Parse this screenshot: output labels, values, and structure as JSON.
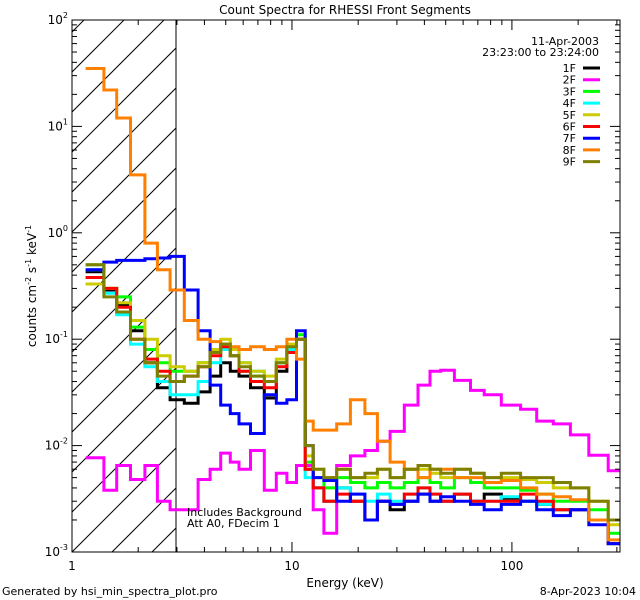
{
  "chart_data": {
    "type": "line",
    "title": "Count Spectra for RHESSI Front Segments",
    "xlabel": "Energy (keV)",
    "ylabel": {
      "base": "counts cm",
      "e1": "-2",
      "mid": " s",
      "e2": "-1",
      "mid2": " keV",
      "e3": "-1"
    },
    "xscale": "log",
    "yscale": "log",
    "xlim": [
      1,
      310
    ],
    "ylim": [
      0.001,
      100
    ],
    "x_ticks": [
      {
        "value": 1,
        "label": "1"
      },
      {
        "value": 10,
        "label": "10"
      },
      {
        "value": 100,
        "label": "100"
      }
    ],
    "y_ticks": [
      {
        "value": 0.001,
        "base": "10",
        "exp": "-3"
      },
      {
        "value": 0.01,
        "base": "10",
        "exp": "-2"
      },
      {
        "value": 0.1,
        "base": "10",
        "exp": "-1"
      },
      {
        "value": 1,
        "base": "10",
        "exp": "0"
      },
      {
        "value": 10,
        "base": "10",
        "exp": "1"
      },
      {
        "value": 100,
        "base": "10",
        "exp": "2"
      }
    ],
    "hatched_region_kev": [
      1,
      3
    ],
    "date": "11-Apr-2003",
    "time_range": "23:23:00 to 23:24:00",
    "annotations": [
      "Includes Background",
      "Att A0, FDecim 1"
    ],
    "legend_position": "top-right",
    "x": [
      1.2,
      1.3,
      1.5,
      1.7,
      2.0,
      2.3,
      2.6,
      3.0,
      3.5,
      4,
      4.5,
      5,
      5.5,
      6,
      7,
      8,
      9,
      10,
      11,
      12,
      13,
      15,
      17,
      20,
      23,
      26,
      30,
      35,
      40,
      45,
      50,
      60,
      70,
      80,
      100,
      120,
      140,
      170,
      200,
      250,
      300
    ],
    "series": [
      {
        "name": "1F",
        "color": "#000000",
        "values": [
          0.43,
          0.43,
          0.29,
          0.21,
          0.12,
          0.06,
          0.035,
          0.027,
          0.025,
          0.032,
          0.045,
          0.06,
          0.05,
          0.045,
          0.035,
          0.028,
          0.05,
          0.08,
          0.1,
          0.006,
          0.004,
          0.003,
          0.004,
          0.003,
          0.002,
          0.003,
          0.0025,
          0.003,
          0.0035,
          0.003,
          0.003,
          0.0035,
          0.003,
          0.0035,
          0.0032,
          0.003,
          0.0028,
          0.0025,
          0.0025,
          0.002,
          0.0012
        ]
      },
      {
        "name": "2F",
        "color": "#ff00ff",
        "values": [
          0.0077,
          0.0077,
          0.0038,
          0.0065,
          0.0048,
          0.0065,
          0.003,
          0.0025,
          0.0025,
          0.0048,
          0.006,
          0.0085,
          0.007,
          0.006,
          0.009,
          0.0038,
          0.0055,
          0.0045,
          0.0065,
          0.0065,
          0.0025,
          0.0015,
          0.0065,
          0.008,
          0.009,
          0.011,
          0.0136,
          0.024,
          0.037,
          0.05,
          0.051,
          0.041,
          0.033,
          0.03,
          0.024,
          0.022,
          0.017,
          0.016,
          0.0126,
          0.0081,
          0.0058
        ]
      },
      {
        "name": "3F",
        "color": "#00ff00",
        "values": [
          0.5,
          0.5,
          0.3,
          0.25,
          0.13,
          0.08,
          0.06,
          0.05,
          0.05,
          0.06,
          0.075,
          0.09,
          0.07,
          0.05,
          0.045,
          0.04,
          0.06,
          0.08,
          0.11,
          0.007,
          0.005,
          0.004,
          0.005,
          0.0045,
          0.004,
          0.0045,
          0.004,
          0.0045,
          0.005,
          0.0045,
          0.004,
          0.005,
          0.0045,
          0.004,
          0.004,
          0.0038,
          0.0035,
          0.003,
          0.003,
          0.0025,
          0.0015
        ]
      },
      {
        "name": "4F",
        "color": "#00ffff",
        "values": [
          0.45,
          0.45,
          0.27,
          0.17,
          0.09,
          0.055,
          0.04,
          0.03,
          0.03,
          0.04,
          0.06,
          0.08,
          0.07,
          0.06,
          0.05,
          0.04,
          0.06,
          0.08,
          0.1,
          0.005,
          0.004,
          0.003,
          0.004,
          0.0035,
          0.003,
          0.0035,
          0.003,
          0.0035,
          0.004,
          0.0035,
          0.003,
          0.0035,
          0.003,
          0.003,
          0.0033,
          0.003,
          0.0028,
          0.0025,
          0.0025,
          0.002,
          0.0012
        ]
      },
      {
        "name": "5F",
        "color": "#cccc00",
        "values": [
          0.33,
          0.33,
          0.3,
          0.22,
          0.15,
          0.1,
          0.07,
          0.055,
          0.05,
          0.06,
          0.08,
          0.1,
          0.08,
          0.06,
          0.05,
          0.045,
          0.065,
          0.09,
          0.1,
          0.008,
          0.006,
          0.005,
          0.006,
          0.005,
          0.005,
          0.006,
          0.005,
          0.006,
          0.006,
          0.0055,
          0.005,
          0.006,
          0.0055,
          0.005,
          0.005,
          0.0048,
          0.0045,
          0.004,
          0.004,
          0.003,
          0.0018
        ]
      },
      {
        "name": "6F",
        "color": "#ff0000",
        "values": [
          0.38,
          0.38,
          0.3,
          0.2,
          0.1,
          0.065,
          0.05,
          0.04,
          0.045,
          0.055,
          0.07,
          0.085,
          0.07,
          0.05,
          0.04,
          0.035,
          0.055,
          0.075,
          0.1,
          0.006,
          0.004,
          0.003,
          0.0035,
          0.003,
          0.002,
          0.003,
          0.0028,
          0.0035,
          0.004,
          0.0035,
          0.003,
          0.0035,
          0.003,
          0.003,
          0.003,
          0.0035,
          0.003,
          0.0025,
          0.0025,
          0.002,
          0.0012
        ]
      },
      {
        "name": "7F",
        "color": "#0000ff",
        "values": [
          0.45,
          0.45,
          0.53,
          0.55,
          0.55,
          0.57,
          0.58,
          0.6,
          0.29,
          0.12,
          0.037,
          0.024,
          0.02,
          0.016,
          0.013,
          0.03,
          0.025,
          0.027,
          0.12,
          0.01,
          0.005,
          0.0047,
          0.003,
          0.0035,
          0.002,
          0.003,
          0.0028,
          0.003,
          0.0035,
          0.003,
          0.0033,
          0.003,
          0.0028,
          0.0025,
          0.0028,
          0.003,
          0.0025,
          0.0022,
          0.0025,
          0.0018,
          0.0012
        ]
      },
      {
        "name": "8F",
        "color": "#ff8000",
        "values": [
          35,
          35,
          22,
          12,
          3.5,
          0.8,
          0.45,
          0.29,
          0.15,
          0.1,
          0.095,
          0.09,
          0.085,
          0.08,
          0.085,
          0.08,
          0.085,
          0.1,
          0.065,
          0.017,
          0.014,
          0.014,
          0.016,
          0.027,
          0.02,
          0.011,
          0.007,
          0.006,
          0.005,
          0.006,
          0.006,
          0.005,
          0.005,
          0.0045,
          0.0047,
          0.004,
          0.0035,
          0.0033,
          0.0031,
          0.002,
          0.0013
        ]
      },
      {
        "name": "9F",
        "color": "#808000",
        "values": [
          0.5,
          0.5,
          0.25,
          0.18,
          0.1,
          0.06,
          0.045,
          0.04,
          0.045,
          0.055,
          0.075,
          0.09,
          0.07,
          0.055,
          0.045,
          0.04,
          0.06,
          0.085,
          0.1,
          0.01,
          0.006,
          0.005,
          0.006,
          0.005,
          0.0055,
          0.006,
          0.005,
          0.006,
          0.0065,
          0.006,
          0.0055,
          0.006,
          0.0055,
          0.005,
          0.0055,
          0.005,
          0.005,
          0.0045,
          0.004,
          0.003,
          0.002
        ]
      }
    ]
  },
  "footer": {
    "generated_by": "Generated by hsi_min_spectra_plot.pro",
    "timestamp": "8-Apr-2023 10:04"
  }
}
